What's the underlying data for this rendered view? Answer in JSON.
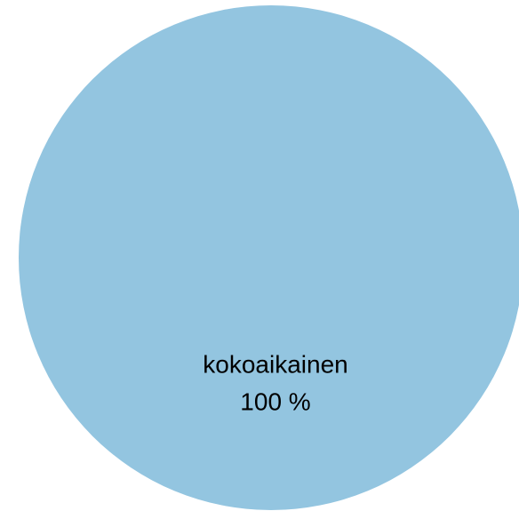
{
  "chart_data": {
    "type": "pie",
    "categories": [
      "kokoaikainen"
    ],
    "values": [
      100
    ],
    "value_labels": [
      "100 %"
    ],
    "colors": [
      "#93c5e0"
    ]
  }
}
